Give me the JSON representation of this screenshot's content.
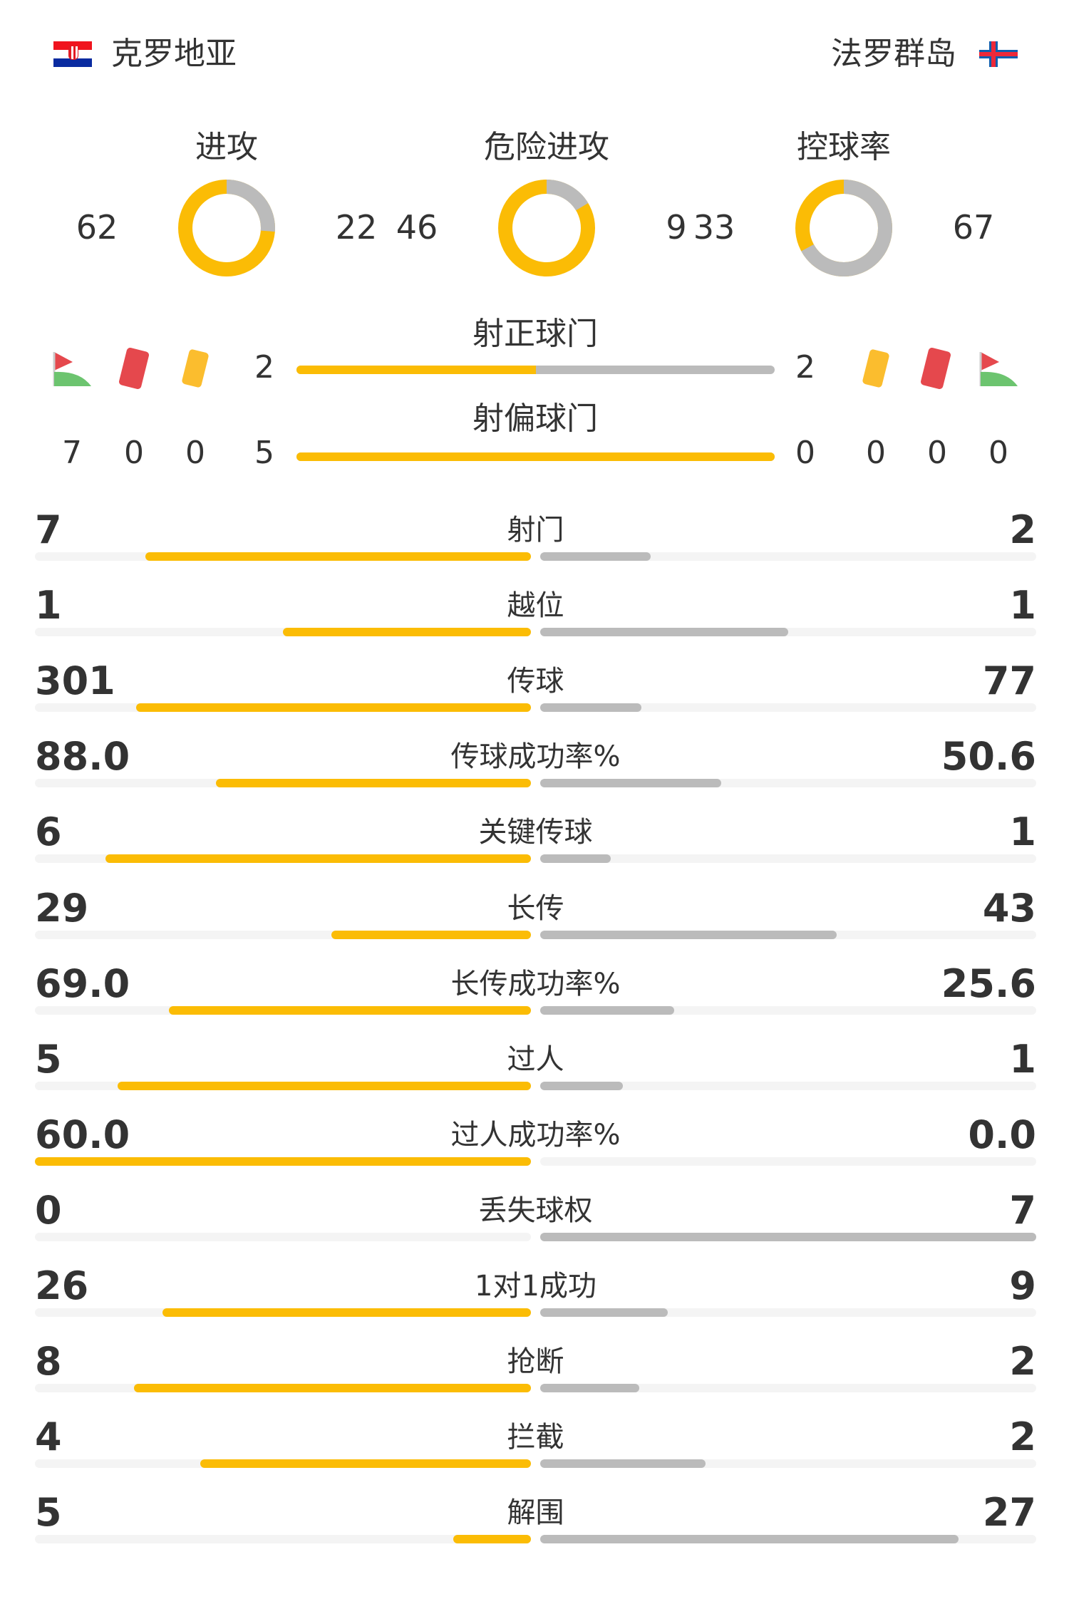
{
  "home": {
    "name": "克罗地亚",
    "flag_icon": "croatia-flag-icon"
  },
  "away": {
    "name": "法罗群岛",
    "flag_icon": "faroe-islands-flag-icon"
  },
  "colors": {
    "home": "#fbbc05",
    "away": "#bbbbbb",
    "track": "#f4f4f4",
    "text": "#333333"
  },
  "rings": [
    {
      "title": "进攻",
      "home": 62,
      "away": 22
    },
    {
      "title": "危险进攻",
      "home": 46,
      "away": 9
    },
    {
      "title": "控球率",
      "home": 33,
      "away": 67
    }
  ],
  "shots_on_target": {
    "label": "射正球门",
    "home": 2,
    "away": 2
  },
  "shots_off_target": {
    "label": "射偏球门",
    "home": 5,
    "away": 0
  },
  "events": {
    "home": {
      "corners": 7,
      "red_cards": 0,
      "yellow_cards": 0
    },
    "away": {
      "corners": 0,
      "red_cards": 0,
      "yellow_cards": 0
    }
  },
  "stats": [
    {
      "label": "射门",
      "home": "7",
      "away": "2"
    },
    {
      "label": "越位",
      "home": "1",
      "away": "1"
    },
    {
      "label": "传球",
      "home": "301",
      "away": "77"
    },
    {
      "label": "传球成功率%",
      "home": "88.0",
      "away": "50.6"
    },
    {
      "label": "关键传球",
      "home": "6",
      "away": "1"
    },
    {
      "label": "长传",
      "home": "29",
      "away": "43"
    },
    {
      "label": "长传成功率%",
      "home": "69.0",
      "away": "25.6"
    },
    {
      "label": "过人",
      "home": "5",
      "away": "1"
    },
    {
      "label": "过人成功率%",
      "home": "60.0",
      "away": "0.0"
    },
    {
      "label": "丢失球权",
      "home": "0",
      "away": "7"
    },
    {
      "label": "1对1成功",
      "home": "26",
      "away": "9"
    },
    {
      "label": "抢断",
      "home": "8",
      "away": "2"
    },
    {
      "label": "拦截",
      "home": "4",
      "away": "2"
    },
    {
      "label": "解围",
      "home": "5",
      "away": "27"
    }
  ]
}
